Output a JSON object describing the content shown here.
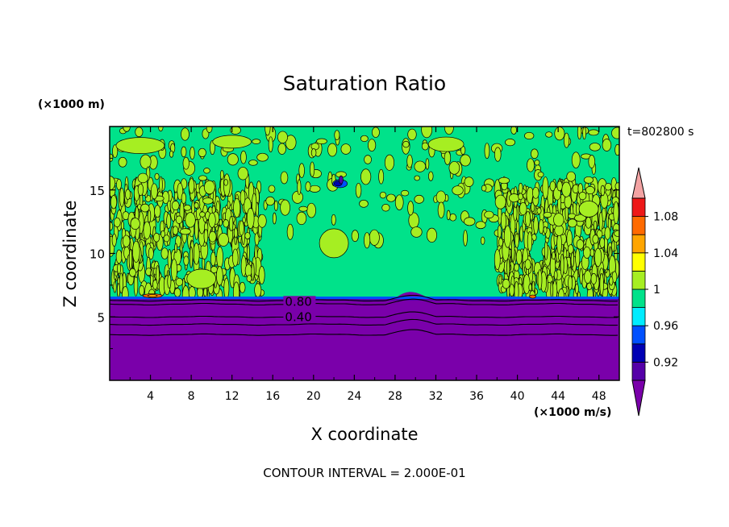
{
  "chart_data": {
    "type": "heatmap",
    "title": "Saturation Ratio",
    "xlabel": "X coordinate",
    "ylabel": "Z coordinate",
    "x_units": "(×1000 m/s)",
    "y_units": "(×1000 m)",
    "time_label": "t=802800 s",
    "footer": "CONTOUR INTERVAL = 2.000E-01",
    "xlim": [
      0,
      50
    ],
    "ylim": [
      0,
      20
    ],
    "x_ticks": [
      4,
      8,
      12,
      16,
      20,
      24,
      28,
      32,
      36,
      40,
      44,
      48
    ],
    "x_tick_labels": [
      "4",
      "8",
      "12",
      "16",
      "20",
      "24",
      "28",
      "32",
      "36",
      "40",
      "44",
      "48"
    ],
    "y_ticks": [
      5,
      10,
      15
    ],
    "y_tick_labels": [
      "5",
      "10",
      "15"
    ],
    "contour_labels": [
      {
        "text": "0.80",
        "x": 17.2,
        "y": 6.2
      },
      {
        "text": "0.40",
        "x": 17.2,
        "y": 5.0
      }
    ],
    "regions": {
      "upper_background_level": "0.96-1",
      "upper_speckle_level": "1-1.02",
      "lower_level": "<0.90",
      "interface_height": 6.6,
      "moist_bands_x": [
        [
          0,
          15
        ],
        [
          38,
          50
        ]
      ]
    },
    "colorbar": {
      "tick_labels": [
        "0.92",
        "0.96",
        "1",
        "1.04",
        "1.08"
      ],
      "bins": [
        {
          "range": "< 0.90",
          "color": "#7a00aa"
        },
        {
          "range": "0.90-0.92",
          "color": "#5500a8"
        },
        {
          "range": "0.92-0.94",
          "color": "#0000b4"
        },
        {
          "range": "0.94-0.96",
          "color": "#0050ff"
        },
        {
          "range": "0.96-0.98",
          "color": "#00ecff"
        },
        {
          "range": "0.98-1.00",
          "color": "#00e28a"
        },
        {
          "range": "1.00-1.02",
          "color": "#a6ee22"
        },
        {
          "range": "1.02-1.04",
          "color": "#ffff00"
        },
        {
          "range": "1.04-1.06",
          "color": "#ffa500"
        },
        {
          "range": "1.06-1.08",
          "color": "#ff6a00"
        },
        {
          "range": "1.08-1.10",
          "color": "#ee1818"
        },
        {
          "range": "> 1.10",
          "color": "#f3a3a3"
        }
      ]
    }
  }
}
